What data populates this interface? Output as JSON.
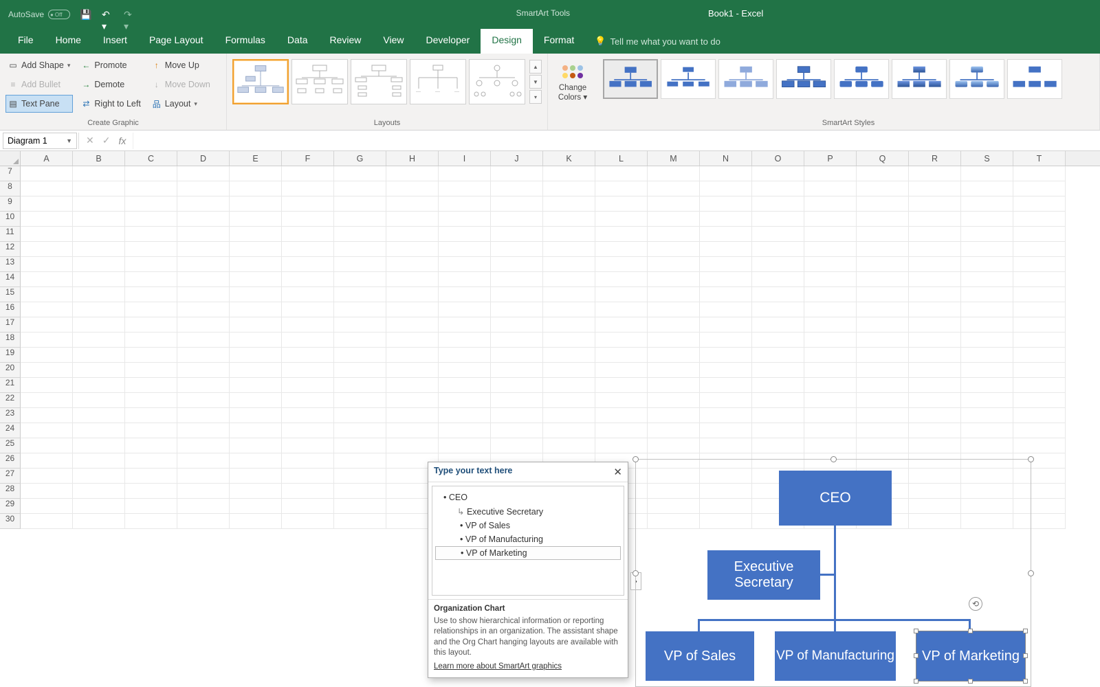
{
  "title_bar": {
    "autosave_label": "AutoSave",
    "autosave_off": "Off",
    "smartart_tools": "SmartArt Tools",
    "book_title": "Book1  -  Excel"
  },
  "tabs": {
    "file": "File",
    "home": "Home",
    "insert": "Insert",
    "page_layout": "Page Layout",
    "formulas": "Formulas",
    "data": "Data",
    "review": "Review",
    "view": "View",
    "developer": "Developer",
    "design": "Design",
    "format": "Format",
    "tell_me": "Tell me what you want to do"
  },
  "ribbon": {
    "create_graphic": {
      "add_shape": "Add Shape",
      "add_bullet": "Add Bullet",
      "text_pane": "Text Pane",
      "promote": "Promote",
      "demote": "Demote",
      "right_to_left": "Right to Left",
      "move_up": "Move Up",
      "move_down": "Move Down",
      "layout": "Layout",
      "group_label": "Create Graphic"
    },
    "layouts_label": "Layouts",
    "change_colors": "Change Colors",
    "styles_label": "SmartArt Styles"
  },
  "formula_bar": {
    "name_box": "Diagram 1"
  },
  "grid": {
    "columns": [
      "A",
      "B",
      "C",
      "D",
      "E",
      "F",
      "G",
      "H",
      "I",
      "J",
      "K",
      "L",
      "M",
      "N",
      "O",
      "P",
      "Q",
      "R",
      "S",
      "T"
    ],
    "row_start": 7,
    "row_end": 30
  },
  "text_pane": {
    "header": "Type your text here",
    "items": {
      "ceo": "CEO",
      "exec_sec": "Executive Secretary",
      "vp_sales": "VP of Sales",
      "vp_mfg": "VP of Manufacturing",
      "vp_mkt": "VP of Marketing"
    },
    "footer_title": "Organization Chart",
    "footer_text": "Use to show hierarchical information or reporting relationships in an organization. The assistant shape and the Org Chart hanging layouts are available with this layout.",
    "footer_link": "Learn more about SmartArt graphics"
  },
  "smartart": {
    "nodes": {
      "ceo": "CEO",
      "exec_sec": "Executive Secretary",
      "vp_sales": "VP of Sales",
      "vp_mfg": "VP of Manufacturing",
      "vp_mkt": "VP of Marketing"
    },
    "node_color": "#4472c4",
    "text_color": "#ffffff"
  },
  "colors": {
    "excel_green": "#217346",
    "ribbon_bg": "#f3f2f1"
  }
}
